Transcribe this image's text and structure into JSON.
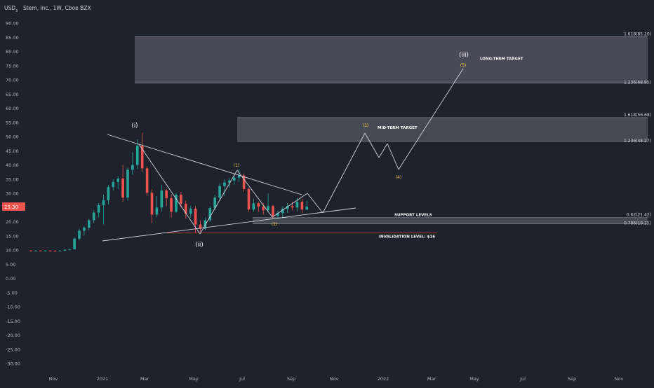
{
  "header": {
    "currency": "USD",
    "title": "Stem, Inc., 1W, Cboe BZX"
  },
  "colors": {
    "background": "#1e222d",
    "up": "#26a69a",
    "down": "#ef5350",
    "line": "#d1d4dc",
    "label_yellow": "#f5d142",
    "invalidation": "#c0392b"
  },
  "chart_data": {
    "type": "candlestick",
    "interval": "1W",
    "ylim": [
      -32,
      94
    ],
    "y_ticks": [
      "90.00",
      "85.00",
      "80.00",
      "75.00",
      "70.00",
      "65.00",
      "60.00",
      "55.00",
      "50.00",
      "45.00",
      "40.00",
      "35.00",
      "30.00",
      "25.00",
      "20.00",
      "15.00",
      "10.00",
      "5.00",
      "0.00",
      "-5.00",
      "-10.00",
      "-15.00",
      "-20.00",
      "-25.00",
      "-30.00"
    ],
    "x_ticks": [
      "Nov",
      "2021",
      "Mar",
      "May",
      "Jul",
      "Sep",
      "Nov",
      "2022",
      "Mar",
      "May",
      "Jul",
      "Sep",
      "Nov"
    ],
    "last_price": "25.30",
    "candles": [
      {
        "o": 9.8,
        "h": 10.0,
        "l": 9.6,
        "c": 9.7
      },
      {
        "o": 9.7,
        "h": 9.9,
        "l": 9.5,
        "c": 9.8
      },
      {
        "o": 9.8,
        "h": 9.9,
        "l": 9.6,
        "c": 9.7
      },
      {
        "o": 9.7,
        "h": 9.9,
        "l": 9.6,
        "c": 9.8
      },
      {
        "o": 9.8,
        "h": 9.9,
        "l": 9.6,
        "c": 9.7
      },
      {
        "o": 9.7,
        "h": 9.9,
        "l": 9.5,
        "c": 9.6
      },
      {
        "o": 9.6,
        "h": 9.9,
        "l": 9.5,
        "c": 9.8
      },
      {
        "o": 9.8,
        "h": 10.2,
        "l": 9.7,
        "c": 10.1
      },
      {
        "o": 10.1,
        "h": 10.4,
        "l": 9.9,
        "c": 10.3
      },
      {
        "o": 10.3,
        "h": 14.5,
        "l": 10.1,
        "c": 14.0
      },
      {
        "o": 14.0,
        "h": 17.5,
        "l": 13.5,
        "c": 16.8
      },
      {
        "o": 16.8,
        "h": 18.5,
        "l": 15.0,
        "c": 17.9
      },
      {
        "o": 17.9,
        "h": 21.0,
        "l": 17.0,
        "c": 20.5
      },
      {
        "o": 20.5,
        "h": 24.0,
        "l": 19.5,
        "c": 23.2
      },
      {
        "o": 23.2,
        "h": 26.5,
        "l": 21.5,
        "c": 25.8
      },
      {
        "o": 25.8,
        "h": 29.5,
        "l": 19.0,
        "c": 27.6
      },
      {
        "o": 27.6,
        "h": 33.0,
        "l": 26.0,
        "c": 32.2
      },
      {
        "o": 32.2,
        "h": 35.0,
        "l": 31.0,
        "c": 34.0
      },
      {
        "o": 34.0,
        "h": 36.0,
        "l": 31.5,
        "c": 35.2
      },
      {
        "o": 35.2,
        "h": 40.0,
        "l": 27.0,
        "c": 28.5
      },
      {
        "o": 28.5,
        "h": 39.0,
        "l": 27.5,
        "c": 38.3
      },
      {
        "o": 38.3,
        "h": 44.5,
        "l": 36.5,
        "c": 40.0
      },
      {
        "o": 40.0,
        "h": 49.0,
        "l": 38.5,
        "c": 46.8
      },
      {
        "o": 46.8,
        "h": 51.5,
        "l": 37.5,
        "c": 38.8
      },
      {
        "o": 38.8,
        "h": 39.5,
        "l": 29.0,
        "c": 30.2
      },
      {
        "o": 30.2,
        "h": 31.5,
        "l": 19.5,
        "c": 22.5
      },
      {
        "o": 22.5,
        "h": 29.0,
        "l": 21.5,
        "c": 25.0
      },
      {
        "o": 25.0,
        "h": 33.0,
        "l": 23.5,
        "c": 31.0
      },
      {
        "o": 31.0,
        "h": 31.5,
        "l": 25.5,
        "c": 28.3
      },
      {
        "o": 28.3,
        "h": 29.5,
        "l": 21.5,
        "c": 23.5
      },
      {
        "o": 23.5,
        "h": 30.2,
        "l": 23.0,
        "c": 29.5
      },
      {
        "o": 29.5,
        "h": 30.5,
        "l": 25.0,
        "c": 26.3
      },
      {
        "o": 26.3,
        "h": 27.5,
        "l": 21.0,
        "c": 22.8
      },
      {
        "o": 22.8,
        "h": 25.5,
        "l": 21.5,
        "c": 24.6
      },
      {
        "o": 24.6,
        "h": 25.5,
        "l": 16.0,
        "c": 19.0
      },
      {
        "o": 19.0,
        "h": 20.5,
        "l": 16.5,
        "c": 17.5
      },
      {
        "o": 17.5,
        "h": 21.5,
        "l": 17.0,
        "c": 20.5
      },
      {
        "o": 20.5,
        "h": 25.5,
        "l": 20.0,
        "c": 24.8
      },
      {
        "o": 24.8,
        "h": 29.5,
        "l": 24.0,
        "c": 28.5
      },
      {
        "o": 28.5,
        "h": 33.5,
        "l": 27.5,
        "c": 32.5
      },
      {
        "o": 32.5,
        "h": 35.0,
        "l": 29.0,
        "c": 33.8
      },
      {
        "o": 33.8,
        "h": 35.5,
        "l": 32.0,
        "c": 34.5
      },
      {
        "o": 34.5,
        "h": 36.5,
        "l": 33.0,
        "c": 35.5
      },
      {
        "o": 35.5,
        "h": 38.5,
        "l": 34.0,
        "c": 36.3
      },
      {
        "o": 36.3,
        "h": 37.0,
        "l": 30.5,
        "c": 31.5
      },
      {
        "o": 31.5,
        "h": 32.0,
        "l": 23.5,
        "c": 24.3
      },
      {
        "o": 24.3,
        "h": 28.0,
        "l": 23.5,
        "c": 26.5
      },
      {
        "o": 26.5,
        "h": 27.0,
        "l": 23.5,
        "c": 25.3
      },
      {
        "o": 25.3,
        "h": 26.5,
        "l": 22.5,
        "c": 24.0
      },
      {
        "o": 24.0,
        "h": 30.0,
        "l": 23.5,
        "c": 25.5
      },
      {
        "o": 25.5,
        "h": 26.0,
        "l": 21.0,
        "c": 22.0
      },
      {
        "o": 22.0,
        "h": 24.0,
        "l": 21.0,
        "c": 23.0
      },
      {
        "o": 23.0,
        "h": 25.5,
        "l": 21.5,
        "c": 24.5
      },
      {
        "o": 24.5,
        "h": 26.5,
        "l": 23.0,
        "c": 25.5
      },
      {
        "o": 25.5,
        "h": 27.0,
        "l": 24.0,
        "c": 25.0
      },
      {
        "o": 25.0,
        "h": 28.5,
        "l": 23.5,
        "c": 27.0
      },
      {
        "o": 27.0,
        "h": 28.0,
        "l": 23.0,
        "c": 24.3
      },
      {
        "o": 24.3,
        "h": 27.5,
        "l": 24.0,
        "c": 25.3
      }
    ],
    "zones": [
      {
        "name": "long-term-zone",
        "from": 68.85,
        "to": 85.2,
        "label": "LONG-TERM TARGET",
        "fib_top": "1.618(85.20)",
        "fib_bottom": "1.236(68.85)"
      },
      {
        "name": "mid-term-zone",
        "from": 48.27,
        "to": 56.68,
        "label": "MID-TERM TARGET",
        "fib_top": "1.618(56.68)",
        "fib_bottom": "1.236(48.27)"
      },
      {
        "name": "support-zone",
        "from": 19.25,
        "to": 21.42,
        "label": "SUPPORT LEVELS",
        "fib_top": "0.62(21.42)",
        "fib_bottom": "0.786(19.25)"
      }
    ],
    "invalidation": {
      "value": 16,
      "label": "INVALIDATION LEVEL: $16"
    },
    "wave_labels": [
      {
        "text": "(i)",
        "color": "white"
      },
      {
        "text": "(ii)",
        "color": "white"
      },
      {
        "text": "(iii)",
        "color": "white"
      },
      {
        "text": "(1)",
        "color": "yellow"
      },
      {
        "text": "(2)",
        "color": "yellow"
      },
      {
        "text": "(3)",
        "color": "yellow"
      },
      {
        "text": "(4)",
        "color": "yellow"
      },
      {
        "text": "(5)",
        "color": "yellow"
      }
    ]
  }
}
